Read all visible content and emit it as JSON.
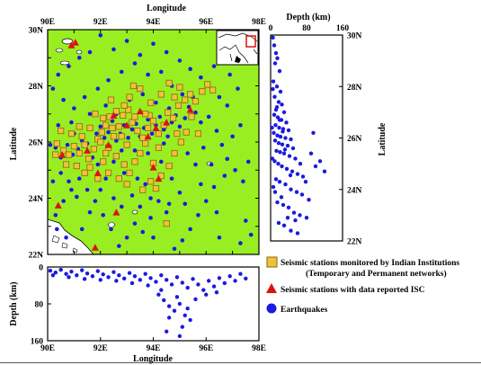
{
  "colors": {
    "land": "#99ee22",
    "station_fill": "#f0c040",
    "station_stroke": "#8a6a00",
    "isc": "#dd1111",
    "quake": "#1a1ae0",
    "water": "#ffffff",
    "frame": "#000000",
    "inset_box": "#dd1111"
  },
  "map": {
    "top_label": "Longitude",
    "bottom_label": "Longitude",
    "y_label": "Latitude",
    "x_ticks": [
      "90E",
      "92E",
      "94E",
      "96E",
      "98E"
    ],
    "y_ticks": [
      "30N",
      "28N",
      "26N",
      "24N",
      "22N"
    ],
    "lon_range": [
      90,
      98
    ],
    "lat_range": [
      22,
      30
    ]
  },
  "lat_depth": {
    "top_label": "Depth (km)",
    "y_label": "Latitude",
    "x_ticks": [
      "0",
      "80",
      "160"
    ],
    "y_ticks": [
      "30N",
      "28N",
      "26N",
      "24N",
      "22N"
    ],
    "depth_range": [
      0,
      160
    ]
  },
  "lon_depth": {
    "y_label": "Depth (km)",
    "x_label": "Longitude",
    "x_ticks": [
      "90E",
      "92E",
      "94E",
      "96E",
      "98E"
    ],
    "y_ticks": [
      "0",
      "80",
      "160"
    ]
  },
  "legend": {
    "station_line1": "Seismic stations monitored by Indian Institutions",
    "station_line2": "(Temporary and Permanent networks)",
    "isc": "Seismic stations with data reported ISC",
    "quake": "Earthquakes"
  },
  "icons": {
    "station": "square-marker",
    "isc": "triangle-marker",
    "quake": "circle-marker"
  },
  "stations": [
    [
      90.35,
      25.95
    ],
    [
      90.6,
      25.7
    ],
    [
      90.8,
      25.55
    ],
    [
      91.0,
      25.85
    ],
    [
      91.2,
      25.6
    ],
    [
      91.4,
      25.9
    ],
    [
      91.55,
      25.4
    ],
    [
      91.75,
      25.75
    ],
    [
      91.9,
      26.1
    ],
    [
      92.05,
      26.35
    ],
    [
      92.2,
      26.6
    ],
    [
      92.35,
      26.9
    ],
    [
      92.1,
      26.85
    ],
    [
      92.5,
      26.2
    ],
    [
      92.7,
      26.55
    ],
    [
      92.85,
      26.95
    ],
    [
      93.05,
      27.15
    ],
    [
      93.2,
      26.7
    ],
    [
      93.4,
      26.4
    ],
    [
      93.6,
      26.15
    ],
    [
      93.8,
      26.5
    ],
    [
      94.0,
      26.75
    ],
    [
      94.2,
      26.3
    ],
    [
      94.4,
      26.6
    ],
    [
      94.55,
      27.05
    ],
    [
      94.75,
      26.85
    ],
    [
      94.95,
      27.3
    ],
    [
      95.2,
      27.5
    ],
    [
      95.4,
      27.7
    ],
    [
      95.6,
      27.45
    ],
    [
      95.85,
      27.8
    ],
    [
      96.05,
      28.05
    ],
    [
      96.25,
      27.85
    ],
    [
      95.0,
      27.95
    ],
    [
      94.6,
      28.1
    ],
    [
      94.3,
      27.7
    ],
    [
      93.9,
      27.4
    ],
    [
      93.5,
      27.9
    ],
    [
      93.1,
      27.6
    ],
    [
      92.9,
      27.3
    ],
    [
      92.6,
      27.1
    ],
    [
      92.4,
      27.5
    ],
    [
      91.8,
      27.0
    ],
    [
      91.6,
      26.5
    ],
    [
      91.3,
      26.2
    ],
    [
      90.9,
      26.3
    ],
    [
      90.5,
      26.4
    ],
    [
      90.3,
      25.55
    ],
    [
      91.1,
      25.15
    ],
    [
      91.6,
      25.1
    ],
    [
      92.1,
      25.3
    ],
    [
      92.3,
      25.8
    ],
    [
      92.6,
      25.5
    ],
    [
      92.9,
      25.2
    ],
    [
      93.1,
      24.9
    ],
    [
      93.3,
      25.3
    ],
    [
      93.5,
      25.6
    ],
    [
      93.7,
      25.95
    ],
    [
      93.9,
      24.6
    ],
    [
      94.1,
      24.35
    ],
    [
      94.3,
      24.8
    ],
    [
      94.6,
      25.15
    ],
    [
      94.8,
      25.6
    ],
    [
      95.05,
      26.0
    ],
    [
      95.25,
      26.35
    ],
    [
      95.45,
      26.9
    ],
    [
      95.7,
      26.3
    ],
    [
      94.0,
      25.25
    ],
    [
      93.6,
      24.3
    ],
    [
      92.7,
      24.7
    ],
    [
      92.3,
      24.9
    ],
    [
      91.9,
      24.7
    ],
    [
      92.0,
      26.0
    ],
    [
      92.8,
      26.2
    ],
    [
      93.0,
      25.9
    ],
    [
      93.3,
      26.9
    ],
    [
      94.5,
      23.1
    ],
    [
      93.25,
      28.0
    ],
    [
      94.8,
      27.6
    ],
    [
      90.7,
      25.2
    ],
    [
      91.4,
      24.9
    ],
    [
      93.85,
      26.95
    ],
    [
      94.9,
      26.3
    ],
    [
      92.45,
      26.5
    ],
    [
      91.2,
      26.55
    ],
    [
      93.7,
      27.0
    ],
    [
      94.2,
      25.8
    ],
    [
      93.0,
      24.5
    ],
    [
      92.2,
      25.6
    ]
  ],
  "isc_stations": [
    [
      90.9,
      29.45
    ],
    [
      91.05,
      29.55
    ],
    [
      90.55,
      25.55
    ],
    [
      91.5,
      25.7
    ],
    [
      92.3,
      25.9
    ],
    [
      92.5,
      26.95
    ],
    [
      93.0,
      26.6
    ],
    [
      93.5,
      27.1
    ],
    [
      94.1,
      26.5
    ],
    [
      94.5,
      26.7
    ],
    [
      95.4,
      27.15
    ],
    [
      94.2,
      24.7
    ],
    [
      94.0,
      25.1
    ],
    [
      92.6,
      23.5
    ],
    [
      91.9,
      24.9
    ],
    [
      90.4,
      23.75
    ],
    [
      91.8,
      22.25
    ],
    [
      93.8,
      26.2
    ]
  ],
  "quakes": [
    [
      90.1,
      25.9
    ],
    [
      90.3,
      25.8
    ],
    [
      90.5,
      25.45
    ],
    [
      90.75,
      25.9
    ],
    [
      90.95,
      25.55
    ],
    [
      91.15,
      25.75
    ],
    [
      91.3,
      26.05
    ],
    [
      91.5,
      25.95
    ],
    [
      91.7,
      25.45
    ],
    [
      91.85,
      26.3
    ],
    [
      92.0,
      26.55
    ],
    [
      92.15,
      26.15
    ],
    [
      92.3,
      26.35
    ],
    [
      92.45,
      26.75
    ],
    [
      92.6,
      26.05
    ],
    [
      92.75,
      26.3
    ],
    [
      92.9,
      26.6
    ],
    [
      93.05,
      26.15
    ],
    [
      93.2,
      26.45
    ],
    [
      93.35,
      26.65
    ],
    [
      93.5,
      26.2
    ],
    [
      93.65,
      26.5
    ],
    [
      93.8,
      26.8
    ],
    [
      93.95,
      26.3
    ],
    [
      94.1,
      26.6
    ],
    [
      94.25,
      26.9
    ],
    [
      94.4,
      26.45
    ],
    [
      94.55,
      26.2
    ],
    [
      94.7,
      26.7
    ],
    [
      94.85,
      26.95
    ],
    [
      95.0,
      26.55
    ],
    [
      95.2,
      26.85
    ],
    [
      95.35,
      27.25
    ],
    [
      95.6,
      27.05
    ],
    [
      95.8,
      26.7
    ],
    [
      96.1,
      26.9
    ],
    [
      96.4,
      26.4
    ],
    [
      96.6,
      25.9
    ],
    [
      96.8,
      25.4
    ],
    [
      97.1,
      25.0
    ],
    [
      97.4,
      24.6
    ],
    [
      97.6,
      25.3
    ],
    [
      96.3,
      24.4
    ],
    [
      96.0,
      23.9
    ],
    [
      95.7,
      23.4
    ],
    [
      95.4,
      22.9
    ],
    [
      95.1,
      22.5
    ],
    [
      94.8,
      22.2
    ],
    [
      94.5,
      23.5
    ],
    [
      94.2,
      23.9
    ],
    [
      93.9,
      23.3
    ],
    [
      93.6,
      22.8
    ],
    [
      93.3,
      23.1
    ],
    [
      93.0,
      22.6
    ],
    [
      92.7,
      22.3
    ],
    [
      92.4,
      22.9
    ],
    [
      92.1,
      23.4
    ],
    [
      91.8,
      23.9
    ],
    [
      91.5,
      24.3
    ],
    [
      91.2,
      24.7
    ],
    [
      90.9,
      24.3
    ],
    [
      90.6,
      23.9
    ],
    [
      90.3,
      23.4
    ],
    [
      90.2,
      24.6
    ],
    [
      90.5,
      24.9
    ],
    [
      90.8,
      24.6
    ],
    [
      91.1,
      24.05
    ],
    [
      92.0,
      24.3
    ],
    [
      92.5,
      24.0
    ],
    [
      93.2,
      24.1
    ],
    [
      93.7,
      24.5
    ],
    [
      94.3,
      25.3
    ],
    [
      94.7,
      24.7
    ],
    [
      95.0,
      24.2
    ],
    [
      95.3,
      25.6
    ],
    [
      95.6,
      25.2
    ],
    [
      95.9,
      25.8
    ],
    [
      96.2,
      25.2
    ],
    [
      96.7,
      24.8
    ],
    [
      97.0,
      26.2
    ],
    [
      97.3,
      26.6
    ],
    [
      96.8,
      27.3
    ],
    [
      96.5,
      27.6
    ],
    [
      97.2,
      27.9
    ],
    [
      96.9,
      28.4
    ],
    [
      96.3,
      28.7
    ],
    [
      95.8,
      28.3
    ],
    [
      95.4,
      28.6
    ],
    [
      95.0,
      28.9
    ],
    [
      94.5,
      29.2
    ],
    [
      94.0,
      29.5
    ],
    [
      93.5,
      29.1
    ],
    [
      93.0,
      29.6
    ],
    [
      92.5,
      29.3
    ],
    [
      92.0,
      29.8
    ],
    [
      91.6,
      29.2
    ],
    [
      91.2,
      29.0
    ],
    [
      90.8,
      28.7
    ],
    [
      90.4,
      28.4
    ],
    [
      90.2,
      27.9
    ],
    [
      90.6,
      27.5
    ],
    [
      91.0,
      27.2
    ],
    [
      91.4,
      27.6
    ],
    [
      91.9,
      27.9
    ],
    [
      92.3,
      28.2
    ],
    [
      92.8,
      28.5
    ],
    [
      93.3,
      28.8
    ],
    [
      93.8,
      28.4
    ],
    [
      94.3,
      28.5
    ],
    [
      94.7,
      28.0
    ],
    [
      95.1,
      27.7
    ],
    [
      95.5,
      27.6
    ],
    [
      92.2,
      27.3
    ],
    [
      91.6,
      27.0
    ],
    [
      90.9,
      26.7
    ],
    [
      90.4,
      26.6
    ],
    [
      91.0,
      26.3
    ],
    [
      92.6,
      27.0
    ],
    [
      93.1,
      27.5
    ],
    [
      93.6,
      27.7
    ],
    [
      94.1,
      27.4
    ],
    [
      94.6,
      27.2
    ],
    [
      93.3,
      25.7
    ],
    [
      92.8,
      25.7
    ],
    [
      93.8,
      25.6
    ],
    [
      94.4,
      25.95
    ],
    [
      92.5,
      25.3
    ],
    [
      91.9,
      25.2
    ],
    [
      92.2,
      24.7
    ],
    [
      92.9,
      24.9
    ],
    [
      93.4,
      24.7
    ],
    [
      93.9,
      24.0
    ],
    [
      94.6,
      23.8
    ],
    [
      95.2,
      23.8
    ],
    [
      95.8,
      24.5
    ],
    [
      96.4,
      23.5
    ],
    [
      97.5,
      23.2
    ],
    [
      97.7,
      22.7
    ],
    [
      97.3,
      22.4
    ],
    [
      96.5,
      22.6
    ],
    [
      90.35,
      22.9
    ],
    [
      90.7,
      22.6
    ],
    [
      91.3,
      22.9
    ],
    [
      91.6,
      23.5
    ],
    [
      92.8,
      23.7
    ],
    [
      93.5,
      23.7
    ],
    [
      94.0,
      22.6
    ]
  ],
  "lat_depth_points": [
    [
      5,
      29.9
    ],
    [
      8,
      29.6
    ],
    [
      12,
      29.3
    ],
    [
      10,
      28.9
    ],
    [
      15,
      29.1
    ],
    [
      20,
      28.6
    ],
    [
      6,
      28.2
    ],
    [
      14,
      28.0
    ],
    [
      22,
      27.8
    ],
    [
      9,
      27.6
    ],
    [
      18,
      27.4
    ],
    [
      25,
      27.3
    ],
    [
      12,
      27.1
    ],
    [
      30,
      27.0
    ],
    [
      8,
      26.9
    ],
    [
      16,
      26.8
    ],
    [
      24,
      26.7
    ],
    [
      35,
      26.6
    ],
    [
      11,
      26.5
    ],
    [
      19,
      26.4
    ],
    [
      28,
      26.35
    ],
    [
      40,
      26.3
    ],
    [
      7,
      26.2
    ],
    [
      15,
      26.1
    ],
    [
      22,
      26.05
    ],
    [
      33,
      26.0
    ],
    [
      45,
      25.95
    ],
    [
      10,
      25.9
    ],
    [
      18,
      25.8
    ],
    [
      26,
      25.75
    ],
    [
      38,
      25.7
    ],
    [
      50,
      25.6
    ],
    [
      13,
      25.5
    ],
    [
      21,
      25.45
    ],
    [
      30,
      25.4
    ],
    [
      42,
      25.3
    ],
    [
      55,
      25.2
    ],
    [
      9,
      25.1
    ],
    [
      17,
      25.0
    ],
    [
      25,
      24.9
    ],
    [
      36,
      24.8
    ],
    [
      48,
      24.7
    ],
    [
      60,
      24.6
    ],
    [
      72,
      24.5
    ],
    [
      12,
      24.4
    ],
    [
      20,
      24.3
    ],
    [
      33,
      24.2
    ],
    [
      45,
      24.0
    ],
    [
      58,
      23.9
    ],
    [
      70,
      23.8
    ],
    [
      85,
      23.6
    ],
    [
      15,
      23.5
    ],
    [
      28,
      23.4
    ],
    [
      40,
      23.3
    ],
    [
      52,
      23.1
    ],
    [
      65,
      23.0
    ],
    [
      80,
      22.9
    ],
    [
      18,
      22.7
    ],
    [
      30,
      22.6
    ],
    [
      45,
      22.4
    ],
    [
      60,
      22.3
    ],
    [
      90,
      25.4
    ],
    [
      100,
      24.9
    ],
    [
      110,
      25.1
    ],
    [
      95,
      26.2
    ],
    [
      5,
      27.9
    ],
    [
      3,
      26.4
    ],
    [
      4,
      25.2
    ],
    [
      6,
      24.1
    ],
    [
      20,
      26.7
    ],
    [
      27,
      26.25
    ],
    [
      14,
      27.2
    ],
    [
      32,
      25.55
    ],
    [
      44,
      24.55
    ],
    [
      66,
      25.0
    ],
    [
      78,
      24.3
    ],
    [
      10,
      23.9
    ],
    [
      24,
      23.7
    ],
    [
      38,
      22.9
    ],
    [
      55,
      22.8
    ],
    [
      120,
      24.7
    ]
  ],
  "lon_depth_points": [
    [
      90.1,
      8
    ],
    [
      90.3,
      12
    ],
    [
      90.5,
      6
    ],
    [
      90.7,
      15
    ],
    [
      90.9,
      10
    ],
    [
      91.1,
      18
    ],
    [
      91.3,
      7
    ],
    [
      91.5,
      14
    ],
    [
      91.7,
      20
    ],
    [
      91.9,
      9
    ],
    [
      92.1,
      16
    ],
    [
      92.3,
      22
    ],
    [
      92.5,
      11
    ],
    [
      92.7,
      18
    ],
    [
      92.9,
      25
    ],
    [
      93.1,
      13
    ],
    [
      93.3,
      20
    ],
    [
      93.5,
      28
    ],
    [
      93.7,
      15
    ],
    [
      93.9,
      24
    ],
    [
      94.1,
      32
    ],
    [
      94.3,
      18
    ],
    [
      94.5,
      28
    ],
    [
      94.7,
      38
    ],
    [
      94.9,
      22
    ],
    [
      95.1,
      34
    ],
    [
      95.3,
      45
    ],
    [
      95.5,
      26
    ],
    [
      95.7,
      38
    ],
    [
      95.9,
      50
    ],
    [
      96.1,
      30
    ],
    [
      96.3,
      42
    ],
    [
      96.5,
      24
    ],
    [
      96.7,
      35
    ],
    [
      96.9,
      20
    ],
    [
      97.1,
      30
    ],
    [
      97.3,
      15
    ],
    [
      97.5,
      25
    ],
    [
      94.2,
      60
    ],
    [
      94.4,
      72
    ],
    [
      94.6,
      85
    ],
    [
      94.8,
      95
    ],
    [
      95.0,
      80
    ],
    [
      95.2,
      105
    ],
    [
      95.4,
      115
    ],
    [
      95.1,
      130
    ],
    [
      94.9,
      65
    ],
    [
      94.6,
      110
    ],
    [
      95.3,
      90
    ],
    [
      94.3,
      50
    ],
    [
      93.8,
      40
    ],
    [
      93.2,
      35
    ],
    [
      92.6,
      30
    ],
    [
      92.0,
      28
    ],
    [
      91.4,
      26
    ],
    [
      90.8,
      22
    ],
    [
      90.2,
      18
    ],
    [
      96.0,
      60
    ],
    [
      96.4,
      55
    ],
    [
      95.6,
      70
    ],
    [
      94.5,
      140
    ],
    [
      95.0,
      150
    ]
  ]
}
